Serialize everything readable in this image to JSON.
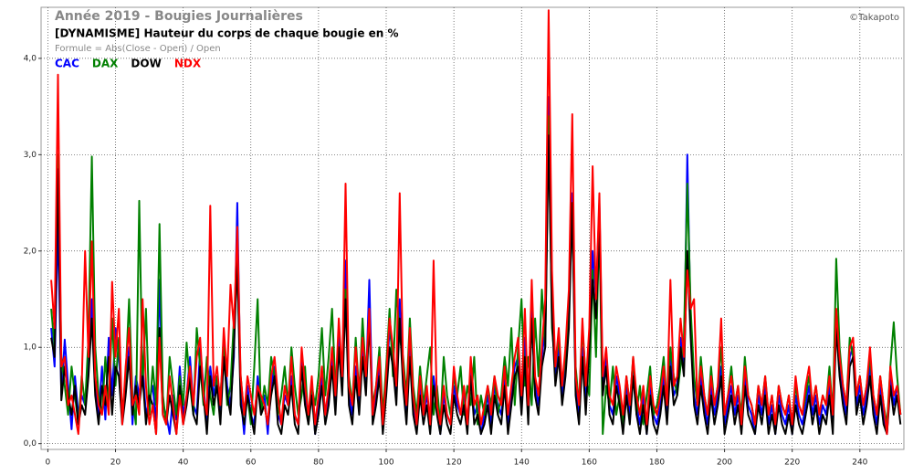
{
  "chart_data": {
    "type": "line",
    "title": "Année 2019 - Bougies Journalières",
    "credit": "©Takapoto",
    "subtitle": "[DYNAMISME] Hauteur du corps de chaque bougie en %",
    "formula": "Formule = Abs(Close - Open) / Open",
    "xlim": [
      -2,
      253
    ],
    "ylim": [
      -0.06,
      4.53
    ],
    "xticks": [
      0,
      20,
      40,
      60,
      80,
      100,
      120,
      140,
      160,
      180,
      200,
      220,
      240
    ],
    "yticks": [
      {
        "value": 0,
        "label": "0,0"
      },
      {
        "value": 1,
        "label": "1,0"
      },
      {
        "value": 2,
        "label": "2,0"
      },
      {
        "value": 3,
        "label": "3,0"
      },
      {
        "value": 4,
        "label": "4,0"
      }
    ],
    "grid": true,
    "x": [
      1,
      2,
      3,
      4,
      5,
      6,
      7,
      8,
      9,
      10,
      11,
      12,
      13,
      14,
      15,
      16,
      17,
      18,
      19,
      20,
      21,
      22,
      23,
      24,
      25,
      26,
      27,
      28,
      29,
      30,
      31,
      32,
      33,
      34,
      35,
      36,
      37,
      38,
      39,
      40,
      41,
      42,
      43,
      44,
      45,
      46,
      47,
      48,
      49,
      50,
      51,
      52,
      53,
      54,
      55,
      56,
      57,
      58,
      59,
      60,
      61,
      62,
      63,
      64,
      65,
      66,
      67,
      68,
      69,
      70,
      71,
      72,
      73,
      74,
      75,
      76,
      77,
      78,
      79,
      80,
      81,
      82,
      83,
      84,
      85,
      86,
      87,
      88,
      89,
      90,
      91,
      92,
      93,
      94,
      95,
      96,
      97,
      98,
      99,
      100,
      101,
      102,
      103,
      104,
      105,
      106,
      107,
      108,
      109,
      110,
      111,
      112,
      113,
      114,
      115,
      116,
      117,
      118,
      119,
      120,
      121,
      122,
      123,
      124,
      125,
      126,
      127,
      128,
      129,
      130,
      131,
      132,
      133,
      134,
      135,
      136,
      137,
      138,
      139,
      140,
      141,
      142,
      143,
      144,
      145,
      146,
      147,
      148,
      149,
      150,
      151,
      152,
      153,
      154,
      155,
      156,
      157,
      158,
      159,
      160,
      161,
      162,
      163,
      164,
      165,
      166,
      167,
      168,
      169,
      170,
      171,
      172,
      173,
      174,
      175,
      176,
      177,
      178,
      179,
      180,
      181,
      182,
      183,
      184,
      185,
      186,
      187,
      188,
      189,
      190,
      191,
      192,
      193,
      194,
      195,
      196,
      197,
      198,
      199,
      200,
      201,
      202,
      203,
      204,
      205,
      206,
      207,
      208,
      209,
      210,
      211,
      212,
      213,
      214,
      215,
      216,
      217,
      218,
      219,
      220,
      221,
      222,
      223,
      224,
      225,
      226,
      227,
      228,
      229,
      230,
      231,
      232,
      233,
      234,
      235,
      236,
      237,
      238,
      239,
      240,
      241,
      242,
      243,
      244,
      245,
      246,
      247,
      248,
      249,
      250,
      251,
      252
    ],
    "series": [
      {
        "name": "CAC",
        "color": "#0000ff",
        "values": [
          1.2,
          0.8,
          2.3,
          0.5,
          1.08,
          0.6,
          0.15,
          0.7,
          0.3,
          0.5,
          0.4,
          0.9,
          1.5,
          0.6,
          0.3,
          0.8,
          0.25,
          1.1,
          0.5,
          1.2,
          0.9,
          0.35,
          0.6,
          1.0,
          0.2,
          0.7,
          0.5,
          0.8,
          0.3,
          0.45,
          0.6,
          0.2,
          1.7,
          0.4,
          0.3,
          0.1,
          0.5,
          0.25,
          0.8,
          0.3,
          0.5,
          0.9,
          0.4,
          0.3,
          1.0,
          0.6,
          0.2,
          0.8,
          0.5,
          0.7,
          0.3,
          1.1,
          0.6,
          0.4,
          0.9,
          2.5,
          0.5,
          0.1,
          0.6,
          0.3,
          0.2,
          0.7,
          0.4,
          0.5,
          0.1,
          0.6,
          0.8,
          0.3,
          0.2,
          0.5,
          0.4,
          0.7,
          0.3,
          0.2,
          0.9,
          0.5,
          0.3,
          0.6,
          0.1,
          0.4,
          0.7,
          0.3,
          0.5,
          0.9,
          0.4,
          1.2,
          0.6,
          1.9,
          0.5,
          0.3,
          0.8,
          0.4,
          1.0,
          0.6,
          1.7,
          0.3,
          0.5,
          0.8,
          0.2,
          0.6,
          1.2,
          0.9,
          0.5,
          1.5,
          0.7,
          0.3,
          1.0,
          0.4,
          0.2,
          0.6,
          0.3,
          0.5,
          0.2,
          0.7,
          0.4,
          0.1,
          0.5,
          0.3,
          0.2,
          0.6,
          0.4,
          0.3,
          0.5,
          0.2,
          0.8,
          0.3,
          0.4,
          0.1,
          0.3,
          0.5,
          0.2,
          0.6,
          0.4,
          0.3,
          0.7,
          0.2,
          0.5,
          0.8,
          0.9,
          0.4,
          1.1,
          0.3,
          1.5,
          0.6,
          0.4,
          0.9,
          1.2,
          3.6,
          1.5,
          0.7,
          1.0,
          0.5,
          0.8,
          1.4,
          2.6,
          0.6,
          0.3,
          1.0,
          0.4,
          1.1,
          2.0,
          1.5,
          2.5,
          0.6,
          0.9,
          0.4,
          0.3,
          0.7,
          0.5,
          0.2,
          0.6,
          0.3,
          0.8,
          0.4,
          0.2,
          0.5,
          0.1,
          0.6,
          0.3,
          0.2,
          0.4,
          0.7,
          0.3,
          0.9,
          0.5,
          0.6,
          1.1,
          0.8,
          3.0,
          1.2,
          0.5,
          0.3,
          0.7,
          0.4,
          0.2,
          0.6,
          0.3,
          0.5,
          0.8,
          0.2,
          0.4,
          0.6,
          0.3,
          0.5,
          0.2,
          0.7,
          0.4,
          0.3,
          0.1,
          0.5,
          0.3,
          0.6,
          0.2,
          0.4,
          0.1,
          0.5,
          0.3,
          0.2,
          0.4,
          0.1,
          0.5,
          0.3,
          0.2,
          0.4,
          0.6,
          0.3,
          0.5,
          0.2,
          0.4,
          0.3,
          0.6,
          0.2,
          1.3,
          0.8,
          0.5,
          0.3,
          0.9,
          1.0,
          0.4,
          0.6,
          0.3,
          0.5,
          0.8,
          0.4,
          0.2,
          0.6,
          0.3,
          0.1,
          0.7,
          0.4,
          0.6,
          0.3
        ]
      },
      {
        "name": "DAX",
        "color": "#008000",
        "values": [
          1.4,
          1.0,
          3.0,
          0.9,
          0.6,
          0.3,
          0.8,
          0.5,
          0.2,
          0.7,
          0.4,
          1.1,
          2.98,
          1.0,
          0.5,
          0.3,
          0.9,
          0.4,
          1.3,
          0.6,
          1.1,
          0.3,
          0.7,
          1.5,
          0.5,
          0.2,
          2.52,
          0.6,
          1.4,
          0.3,
          0.8,
          0.4,
          2.28,
          0.5,
          0.2,
          0.9,
          0.6,
          0.3,
          0.7,
          0.4,
          1.05,
          0.6,
          0.3,
          1.2,
          0.8,
          0.4,
          0.9,
          0.5,
          0.3,
          0.7,
          0.5,
          1.0,
          0.4,
          0.6,
          1.3,
          1.8,
          0.7,
          0.3,
          0.5,
          0.2,
          0.8,
          1.5,
          0.3,
          0.6,
          0.4,
          0.9,
          0.7,
          0.3,
          0.5,
          0.8,
          0.4,
          1.0,
          0.6,
          0.3,
          0.5,
          0.8,
          0.2,
          0.6,
          0.4,
          0.7,
          1.2,
          0.5,
          0.9,
          1.4,
          0.6,
          1.0,
          0.8,
          1.6,
          0.7,
          0.4,
          1.1,
          0.5,
          1.3,
          0.7,
          1.2,
          0.4,
          0.6,
          1.0,
          0.3,
          0.8,
          1.4,
          0.7,
          1.6,
          1.1,
          0.9,
          0.5,
          1.3,
          0.6,
          0.3,
          0.8,
          0.4,
          0.7,
          1.0,
          0.3,
          0.6,
          0.2,
          0.9,
          0.5,
          0.3,
          0.7,
          0.5,
          0.8,
          0.3,
          0.6,
          0.4,
          0.9,
          0.2,
          0.5,
          0.3,
          0.6,
          0.4,
          0.7,
          0.3,
          0.5,
          0.9,
          0.6,
          1.2,
          0.4,
          1.0,
          1.5,
          0.6,
          0.9,
          0.4,
          1.3,
          0.7,
          1.6,
          1.0,
          3.4,
          1.2,
          0.8,
          1.1,
          0.6,
          0.9,
          1.5,
          2.4,
          0.8,
          0.4,
          1.2,
          0.7,
          0.5,
          1.8,
          0.9,
          2.3,
          0.1,
          0.6,
          0.4,
          0.8,
          0.3,
          0.5,
          0.2,
          0.7,
          0.4,
          0.9,
          0.3,
          0.6,
          0.2,
          0.5,
          0.8,
          0.3,
          0.4,
          0.6,
          0.9,
          0.4,
          1.0,
          0.7,
          0.5,
          0.8,
          1.1,
          2.7,
          1.4,
          0.7,
          0.4,
          0.9,
          0.5,
          0.3,
          0.8,
          0.4,
          0.6,
          1.0,
          0.3,
          0.5,
          0.8,
          0.4,
          0.6,
          0.3,
          0.9,
          0.5,
          0.4,
          0.2,
          0.6,
          0.4,
          0.7,
          0.3,
          0.5,
          0.2,
          0.6,
          0.4,
          0.3,
          0.5,
          0.2,
          0.6,
          0.4,
          0.3,
          0.5,
          0.7,
          0.4,
          0.6,
          0.3,
          0.5,
          0.4,
          0.8,
          0.3,
          1.92,
          1.0,
          0.6,
          0.4,
          1.1,
          0.9,
          0.5,
          0.7,
          0.4,
          0.6,
          0.9,
          0.5,
          0.3,
          0.7,
          0.4,
          0.2,
          0.8,
          1.26,
          0.7,
          0.3
        ]
      },
      {
        "name": "DOW",
        "color": "#000000",
        "values": [
          1.1,
          0.9,
          2.85,
          0.45,
          0.8,
          0.5,
          0.3,
          0.6,
          0.2,
          0.4,
          0.3,
          0.7,
          1.3,
          0.5,
          0.2,
          0.6,
          0.4,
          0.9,
          0.3,
          0.8,
          0.7,
          0.2,
          0.5,
          0.9,
          0.3,
          0.6,
          0.4,
          0.7,
          0.2,
          0.5,
          0.4,
          0.1,
          1.2,
          0.3,
          0.2,
          0.5,
          0.3,
          0.1,
          0.6,
          0.2,
          0.4,
          0.7,
          0.3,
          0.2,
          0.8,
          0.5,
          0.1,
          0.7,
          0.4,
          0.6,
          0.2,
          0.9,
          0.5,
          0.3,
          1.0,
          1.9,
          0.4,
          0.2,
          0.5,
          0.3,
          0.1,
          0.6,
          0.3,
          0.4,
          0.2,
          0.5,
          0.7,
          0.2,
          0.1,
          0.4,
          0.3,
          0.6,
          0.2,
          0.1,
          0.8,
          0.4,
          0.2,
          0.5,
          0.1,
          0.3,
          0.6,
          0.2,
          0.4,
          0.8,
          0.3,
          1.0,
          0.5,
          1.5,
          0.4,
          0.2,
          0.7,
          0.3,
          0.9,
          0.5,
          1.3,
          0.2,
          0.4,
          0.7,
          0.1,
          0.5,
          1.0,
          0.8,
          0.4,
          1.3,
          0.6,
          0.2,
          0.9,
          0.3,
          0.1,
          0.5,
          0.2,
          0.4,
          0.1,
          0.6,
          0.3,
          0.1,
          0.4,
          0.2,
          0.1,
          0.5,
          0.3,
          0.2,
          0.4,
          0.1,
          0.7,
          0.2,
          0.3,
          0.1,
          0.2,
          0.4,
          0.1,
          0.5,
          0.3,
          0.2,
          0.6,
          0.1,
          0.4,
          0.7,
          0.8,
          0.3,
          0.9,
          0.2,
          1.3,
          0.5,
          0.3,
          0.8,
          1.0,
          3.2,
          1.3,
          0.6,
          0.9,
          0.4,
          0.7,
          1.2,
          2.5,
          0.5,
          0.2,
          0.9,
          0.3,
          1.0,
          1.7,
          1.3,
          2.3,
          0.5,
          0.8,
          0.3,
          0.2,
          0.6,
          0.4,
          0.1,
          0.5,
          0.2,
          0.7,
          0.3,
          0.1,
          0.4,
          0.1,
          0.5,
          0.2,
          0.1,
          0.3,
          0.6,
          0.2,
          0.8,
          0.4,
          0.5,
          1.0,
          0.7,
          2.0,
          1.1,
          0.4,
          0.2,
          0.6,
          0.3,
          0.1,
          0.5,
          0.2,
          0.4,
          0.7,
          0.1,
          0.3,
          0.5,
          0.2,
          0.4,
          0.1,
          0.6,
          0.3,
          0.2,
          0.1,
          0.4,
          0.2,
          0.5,
          0.1,
          0.3,
          0.1,
          0.4,
          0.2,
          0.1,
          0.3,
          0.1,
          0.4,
          0.2,
          0.1,
          0.3,
          0.5,
          0.2,
          0.4,
          0.1,
          0.3,
          0.2,
          0.5,
          0.1,
          1.2,
          0.7,
          0.4,
          0.2,
          0.8,
          0.9,
          0.3,
          0.5,
          0.2,
          0.4,
          0.7,
          0.3,
          0.1,
          0.5,
          0.2,
          0.1,
          0.6,
          0.3,
          0.5,
          0.2
        ]
      },
      {
        "name": "NDX",
        "color": "#ff0000",
        "values": [
          1.7,
          1.2,
          3.83,
          0.8,
          0.9,
          0.4,
          0.5,
          0.3,
          0.1,
          0.6,
          2.0,
          0.9,
          2.1,
          0.7,
          0.4,
          0.3,
          0.6,
          0.3,
          1.68,
          0.9,
          1.4,
          0.2,
          0.8,
          1.2,
          0.4,
          0.5,
          0.3,
          1.5,
          0.6,
          0.2,
          0.4,
          0.1,
          1.1,
          0.3,
          0.2,
          0.7,
          0.4,
          0.1,
          0.5,
          0.2,
          0.5,
          0.8,
          0.4,
          0.9,
          1.1,
          0.5,
          0.3,
          2.47,
          0.6,
          0.8,
          0.4,
          1.2,
          0.7,
          1.65,
          1.2,
          2.25,
          0.7,
          0.3,
          0.7,
          0.5,
          0.3,
          0.6,
          0.5,
          0.4,
          0.2,
          0.7,
          0.9,
          0.5,
          0.2,
          0.6,
          0.4,
          0.9,
          0.3,
          0.2,
          1.0,
          0.6,
          0.3,
          0.7,
          0.2,
          0.5,
          0.8,
          0.3,
          0.6,
          1.0,
          0.5,
          1.3,
          0.7,
          2.7,
          0.6,
          0.4,
          1.0,
          0.5,
          1.1,
          0.7,
          1.4,
          0.3,
          0.6,
          0.9,
          0.2,
          0.7,
          1.3,
          1.0,
          0.6,
          2.6,
          0.8,
          0.4,
          1.2,
          0.5,
          0.2,
          0.7,
          0.3,
          0.6,
          0.2,
          1.9,
          0.4,
          0.2,
          0.6,
          0.3,
          0.2,
          0.8,
          0.5,
          0.3,
          0.6,
          0.2,
          0.9,
          0.4,
          0.5,
          0.2,
          0.4,
          0.6,
          0.3,
          0.7,
          0.5,
          0.4,
          0.8,
          0.3,
          0.6,
          0.9,
          1.1,
          0.5,
          1.4,
          0.4,
          1.7,
          0.7,
          0.5,
          1.0,
          1.5,
          4.5,
          1.8,
          0.8,
          1.2,
          0.6,
          1.0,
          1.6,
          3.42,
          0.7,
          0.4,
          1.3,
          0.6,
          1.2,
          2.88,
          1.5,
          2.6,
          0.7,
          1.0,
          0.5,
          0.4,
          0.8,
          0.6,
          0.3,
          0.7,
          0.4,
          0.9,
          0.5,
          0.3,
          0.6,
          0.2,
          0.7,
          0.4,
          0.3,
          0.5,
          0.8,
          0.4,
          1.7,
          0.6,
          0.7,
          1.3,
          0.9,
          1.8,
          1.4,
          1.5,
          0.4,
          0.8,
          0.5,
          0.3,
          0.7,
          0.4,
          0.6,
          1.3,
          0.3,
          0.5,
          0.7,
          0.4,
          0.6,
          0.2,
          0.8,
          0.5,
          0.4,
          0.2,
          0.6,
          0.4,
          0.7,
          0.3,
          0.5,
          0.2,
          0.6,
          0.4,
          0.3,
          0.5,
          0.2,
          0.7,
          0.4,
          0.3,
          0.6,
          0.8,
          0.4,
          0.6,
          0.3,
          0.5,
          0.4,
          0.7,
          0.3,
          1.4,
          0.9,
          0.6,
          0.4,
          1.0,
          1.1,
          0.5,
          0.7,
          0.4,
          0.6,
          1.0,
          0.5,
          0.3,
          0.7,
          0.4,
          0.1,
          0.8,
          0.5,
          0.6,
          0.3
        ]
      }
    ]
  }
}
